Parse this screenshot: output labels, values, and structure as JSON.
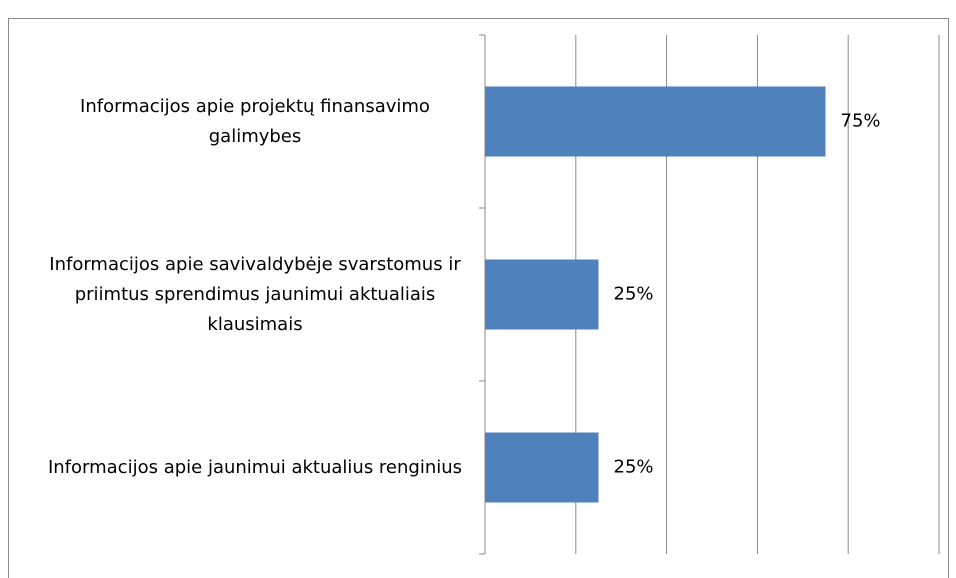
{
  "chart_data": {
    "type": "barh",
    "categories": [
      "Informacijos apie projektų finansavimo galimybes",
      "Informacijos apie savivaldybėje svarstomus ir priimtus sprendimus jaunimui aktualiais klausimais",
      "Informacijos apie jaunimui aktualius renginius"
    ],
    "values": [
      75,
      25,
      25
    ],
    "value_labels": [
      "75%",
      "25%",
      "25%"
    ],
    "color": "#4f81bd",
    "xlim": [
      0,
      100
    ],
    "xticks": [
      0,
      20,
      40,
      60,
      80,
      100
    ],
    "grid": true
  }
}
